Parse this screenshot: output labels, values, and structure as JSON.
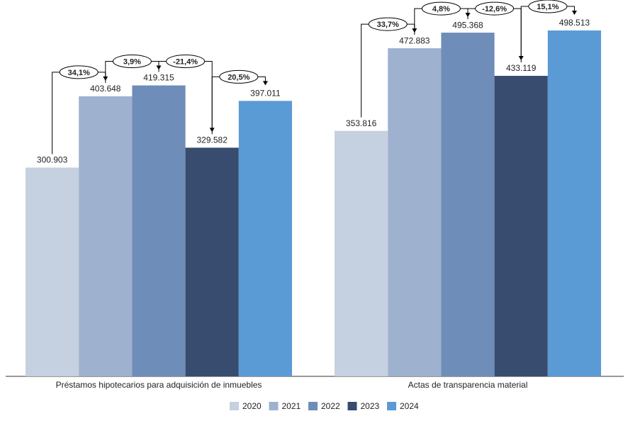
{
  "chart_data": {
    "type": "bar",
    "categories": [
      "Préstamos hipotecarios para adquisición de inmuebles",
      "Actas de transparencia material"
    ],
    "series": [
      {
        "name": "2020",
        "color": "#c5d0e0",
        "values": [
          300903,
          353816
        ],
        "value_labels": [
          "300.903",
          "353.816"
        ]
      },
      {
        "name": "2021",
        "color": "#9eb1cf",
        "values": [
          403648,
          472883
        ],
        "value_labels": [
          "403.648",
          "472.883"
        ]
      },
      {
        "name": "2022",
        "color": "#6e8db8",
        "values": [
          419315,
          495368
        ],
        "value_labels": [
          "419.315",
          "495.368"
        ]
      },
      {
        "name": "2023",
        "color": "#374c6e",
        "values": [
          329582,
          433119
        ],
        "value_labels": [
          "329.582",
          "433.119"
        ]
      },
      {
        "name": "2024",
        "color": "#5b9bd5",
        "values": [
          397011,
          498513
        ],
        "value_labels": [
          "397.011",
          "498.513"
        ]
      }
    ],
    "annotations": [
      [
        "34,1%",
        "3,9%",
        "-21,4%",
        "20,5%"
      ],
      [
        "33,7%",
        "4,8%",
        "-12,6%",
        "15,1%"
      ]
    ],
    "legend": "bottom"
  }
}
